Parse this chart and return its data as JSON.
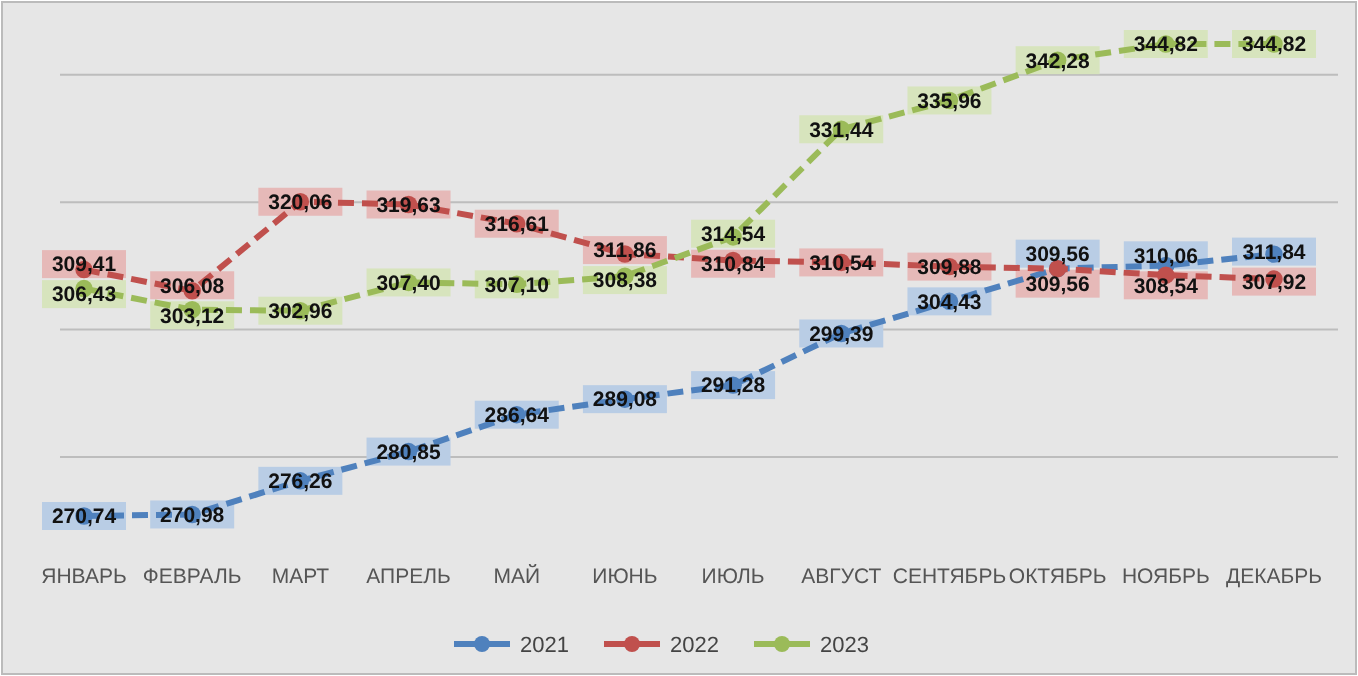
{
  "chart_data": {
    "type": "line",
    "categories": [
      "ЯНВАРЬ",
      "ФЕВРАЛЬ",
      "МАРТ",
      "АПРЕЛЬ",
      "МАЙ",
      "ИЮНЬ",
      "ИЮЛЬ",
      "АВГУСТ",
      "СЕНТЯБРЬ",
      "ОКТЯБРЬ",
      "НОЯБРЬ",
      "ДЕКАБРЬ"
    ],
    "series": [
      {
        "name": "2021",
        "color": "#4f81bd",
        "values": [
          270.74,
          270.98,
          276.26,
          280.85,
          286.64,
          289.08,
          291.28,
          299.39,
          304.43,
          309.56,
          310.06,
          311.84
        ],
        "value_labels": [
          "270,74",
          "270,98",
          "276,26",
          "280,85",
          "286,64",
          "289,08",
          "291,28",
          "299,39",
          "304,43",
          "309,56",
          "310,06",
          "311,84"
        ]
      },
      {
        "name": "2022",
        "color": "#c0504d",
        "values": [
          309.41,
          306.08,
          320.06,
          319.63,
          316.61,
          311.86,
          310.84,
          310.54,
          309.88,
          309.56,
          308.54,
          307.92
        ],
        "value_labels": [
          "309,41",
          "306,08",
          "320,06",
          "319,63",
          "316,61",
          "311,86",
          "310,84",
          "310,54",
          "309,88",
          "309,56",
          "308,54",
          "307,92"
        ]
      },
      {
        "name": "2023",
        "color": "#9bbb59",
        "values": [
          306.43,
          303.12,
          302.96,
          307.4,
          307.1,
          308.38,
          314.54,
          331.44,
          335.96,
          342.28,
          344.82,
          344.82
        ],
        "value_labels": [
          "306,43",
          "303,12",
          "302,96",
          "307,40",
          "307,10",
          "308,38",
          "314,54",
          "331,44",
          "335,96",
          "342,28",
          "344,82",
          "344,82"
        ]
      }
    ],
    "tick_labels": "x",
    "grid": "y",
    "legend": "bottom",
    "marker": "circle",
    "line_style": "dashed"
  }
}
